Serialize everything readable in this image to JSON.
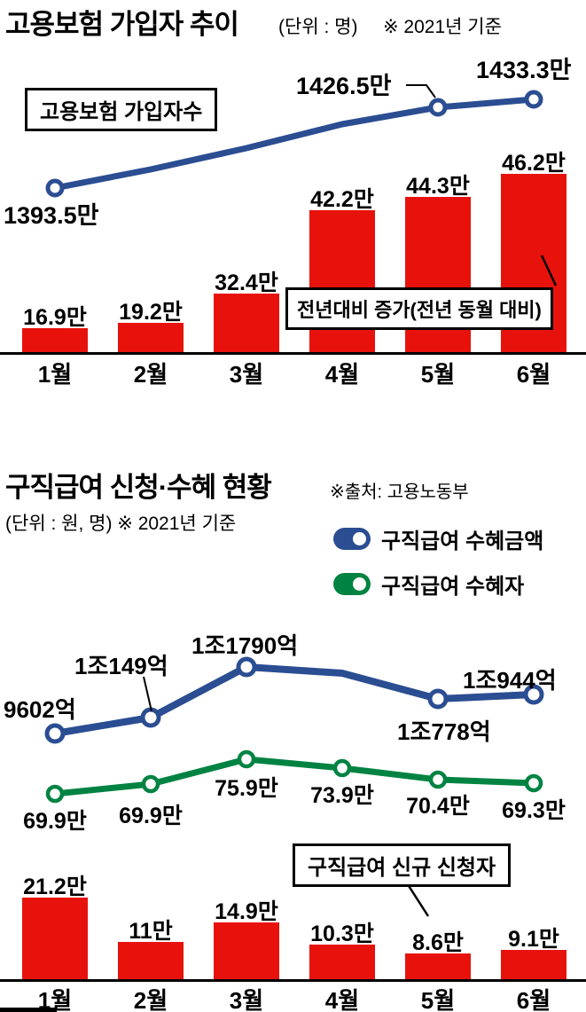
{
  "colors": {
    "line_blue": "#2b4d92",
    "bar_red": "#e8120c",
    "line_green": "#008342",
    "axis": "#000000",
    "text": "#000000"
  },
  "section1": {
    "title": "고용보험 가입자 추이",
    "unit": "(단위 : 명)",
    "basis": "※ 2021년 기준",
    "line_label_box": "고용보험 가입자수",
    "bar_label_box": "전년대비 증가(전년 동월 대비)"
  },
  "section2": {
    "title": "구직급여 신청·수혜 현황",
    "source": "※출처: 고용노동부",
    "unit": "(단위 : 원, 명) ※ 2021년 기준",
    "legend": [
      {
        "label": "구직급여 수혜금액",
        "color": "#2b4d92"
      },
      {
        "label": "구직급여 수혜자",
        "color": "#008342"
      }
    ],
    "bar_label_box": "구직급여 신규 신청자"
  },
  "chart_data": [
    {
      "id": "employment-insurance-trend",
      "type": "bar+line",
      "title": "고용보험 가입자 추이",
      "unit": "명",
      "basis": "2021년 기준",
      "categories": [
        "1월",
        "2월",
        "3월",
        "4월",
        "5월",
        "6월"
      ],
      "series": [
        {
          "name": "고용보험 가입자수",
          "type": "line",
          "unit": "만 명",
          "values": [
            1393.5,
            null,
            null,
            null,
            1426.5,
            1433.3
          ],
          "labels": [
            "1393.5만",
            "",
            "",
            "",
            "1426.5만",
            "1433.3만"
          ],
          "color": "#2b4d92"
        },
        {
          "name": "전년대비 증가(전년 동월 대비)",
          "type": "bar",
          "unit": "만 명",
          "values": [
            16.9,
            19.2,
            32.4,
            42.2,
            44.3,
            46.2
          ],
          "labels": [
            "16.9만",
            "19.2만",
            "32.4만",
            "42.2만",
            "44.3만",
            "46.2만"
          ],
          "color": "#e8120c"
        }
      ],
      "legend_position": "none",
      "grid": false
    },
    {
      "id": "job-seeking-benefits-status",
      "type": "bar+line",
      "title": "구직급여 신청·수혜 현황",
      "unit": "원, 명",
      "basis": "2021년 기준",
      "source": "고용노동부",
      "categories": [
        "1월",
        "2월",
        "3월",
        "4월",
        "5월",
        "6월"
      ],
      "series": [
        {
          "name": "구직급여 수혜금액",
          "type": "line",
          "unit": "억 원",
          "values": [
            9602,
            10149,
            11790,
            null,
            10778,
            10944
          ],
          "labels": [
            "9602억",
            "1조149억",
            "1조1790억",
            "",
            "1조778억",
            "1조944억"
          ],
          "color": "#2b4d92"
        },
        {
          "name": "구직급여 수혜자",
          "type": "line",
          "unit": "만 명",
          "values": [
            69.9,
            69.9,
            75.9,
            73.9,
            70.4,
            69.3
          ],
          "labels": [
            "69.9만",
            "69.9만",
            "75.9만",
            "73.9만",
            "70.4만",
            "69.3만"
          ],
          "color": "#008342"
        },
        {
          "name": "구직급여 신규 신청자",
          "type": "bar",
          "unit": "만 명",
          "values": [
            21.2,
            11,
            14.9,
            10.3,
            8.6,
            9.1
          ],
          "labels": [
            "21.2만",
            "11만",
            "14.9만",
            "10.3만",
            "8.6만",
            "9.1만"
          ],
          "color": "#e8120c"
        }
      ],
      "legend_position": "top-right",
      "grid": false
    }
  ]
}
